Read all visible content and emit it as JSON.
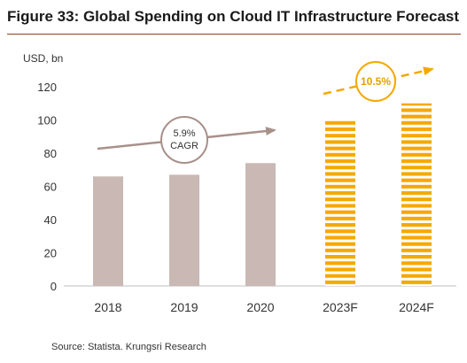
{
  "figure_title": "Figure 33: Global Spending on Cloud IT Infrastructure Forecast",
  "source": "Source: Statista. Krungsri Research",
  "chart_data": {
    "type": "bar",
    "title": "Figure 33: Global Spending on Cloud IT Infrastructure Forecast",
    "ylabel": "USD, bn",
    "xlabel": "",
    "categories": [
      "2018",
      "2019",
      "2020",
      "2023F",
      "2024F"
    ],
    "values": [
      66,
      67,
      74,
      100,
      110
    ],
    "bar_styles": [
      "solid",
      "solid",
      "solid",
      "striped",
      "striped"
    ],
    "ylim": [
      0,
      120
    ],
    "yticks": [
      0,
      20,
      40,
      60,
      80,
      100,
      120
    ],
    "grid": false,
    "colors": {
      "actual": "#c9b8b3",
      "forecast": "#f5a800",
      "trend_actual": "#a8908a",
      "trend_forecast": "#f5a800"
    },
    "annotations": [
      {
        "id": "cagr_actual",
        "lines": [
          "5.9%",
          "CAGR"
        ],
        "style": "circle-solid-arrow"
      },
      {
        "id": "cagr_forecast",
        "lines": [
          "10.5%"
        ],
        "style": "circle-dashed-arrow"
      }
    ]
  }
}
